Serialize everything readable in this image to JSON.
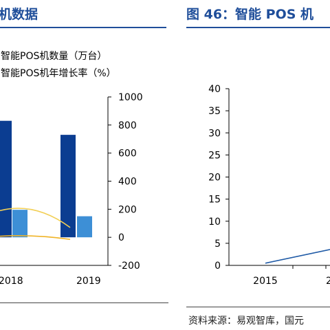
{
  "left_title": "机数据",
  "right_title": "图 46：智能 POS 机",
  "source": "资料来源：易观智库，国元",
  "chart_data": [
    {
      "type": "bar",
      "categories": [
        "2018",
        "2019"
      ],
      "series": [
        {
          "name": "智能POS机数量（万台）",
          "values": [
            830,
            730
          ],
          "color": "#0b3d91"
        },
        {
          "name": "智能POS机年增长率（%）",
          "values": [
            0,
            150
          ],
          "color": "#3d8fd6"
        }
      ],
      "lines": [
        {
          "points": [
            [
              0,
              175
            ],
            [
              1.6,
              70
            ]
          ],
          "color": "#f2cf55"
        },
        {
          "points": [
            [
              0,
              5
            ],
            [
              1.6,
              -15
            ]
          ],
          "color": "#f0b428"
        }
      ],
      "y_ticks": [
        "1000",
        "800",
        "600",
        "400",
        "200",
        "0",
        "-200"
      ],
      "ylim": [
        -200,
        1000
      ]
    },
    {
      "type": "line",
      "x_ticks": [
        "2015",
        "2"
      ],
      "y_ticks": [
        "40",
        "35",
        "30",
        "25",
        "20",
        "15",
        "10",
        "5",
        "0"
      ],
      "ylim": [
        0,
        40
      ],
      "series": [
        {
          "points": [
            [
              "2015",
              0.5
            ],
            [
              "2016",
              3.6
            ]
          ],
          "color": "#1f5aa6"
        }
      ]
    }
  ]
}
